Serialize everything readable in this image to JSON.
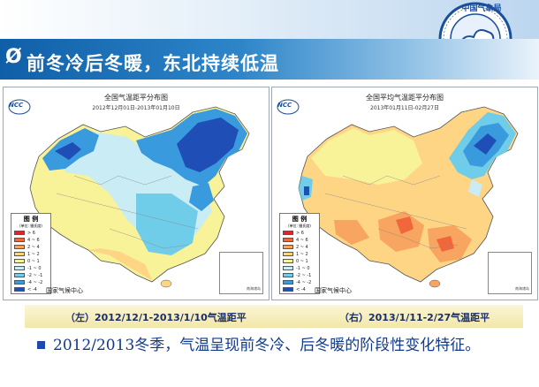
{
  "header": {
    "arrow": "Ø",
    "title": "前冬冷后冬暖，东北持续低温",
    "logo_text": "中国气象局",
    "logo_ring_text": "CHINA METEOROLOGICAL ADMINISTRATION"
  },
  "maps": {
    "left": {
      "title": "全国气温距平分布图",
      "subtitle": "2012年12月01日-2013年01月10日",
      "logo": "NCC",
      "credit": "国家气候中心",
      "inset": "南海诸岛"
    },
    "right": {
      "title": "全国平均气温距平分布图",
      "subtitle": "2013年01月11日-02月27日",
      "logo": "NCC",
      "credit": "国家气候中心",
      "inset": "南海诸岛"
    }
  },
  "legend": {
    "title": "图 例",
    "unit": "(单位: 摄氏度)",
    "items": [
      {
        "label": "> 6",
        "color": "#e0262a"
      },
      {
        "label": "4 ~ 6",
        "color": "#f2663b"
      },
      {
        "label": "2 ~ 4",
        "color": "#f7a560"
      },
      {
        "label": "1 ~ 2",
        "color": "#fdd585"
      },
      {
        "label": "0 ~ 1",
        "color": "#f8f298"
      },
      {
        "label": "-1 ~ 0",
        "color": "#c9ecf5"
      },
      {
        "label": "-2 ~ -1",
        "color": "#6fcdea"
      },
      {
        "label": "-4 ~ -2",
        "color": "#3a9ade"
      },
      {
        "label": "< -4",
        "color": "#1f4fb6"
      }
    ]
  },
  "captions": {
    "left": "（左）2012/12/1-2013/1/10气温距平",
    "right": "（右）2013/1/11-2/27气温距平"
  },
  "body": {
    "text": "2012/2013冬季，气温呈现前冬冷、后冬暖的阶段性变化特征。"
  }
}
